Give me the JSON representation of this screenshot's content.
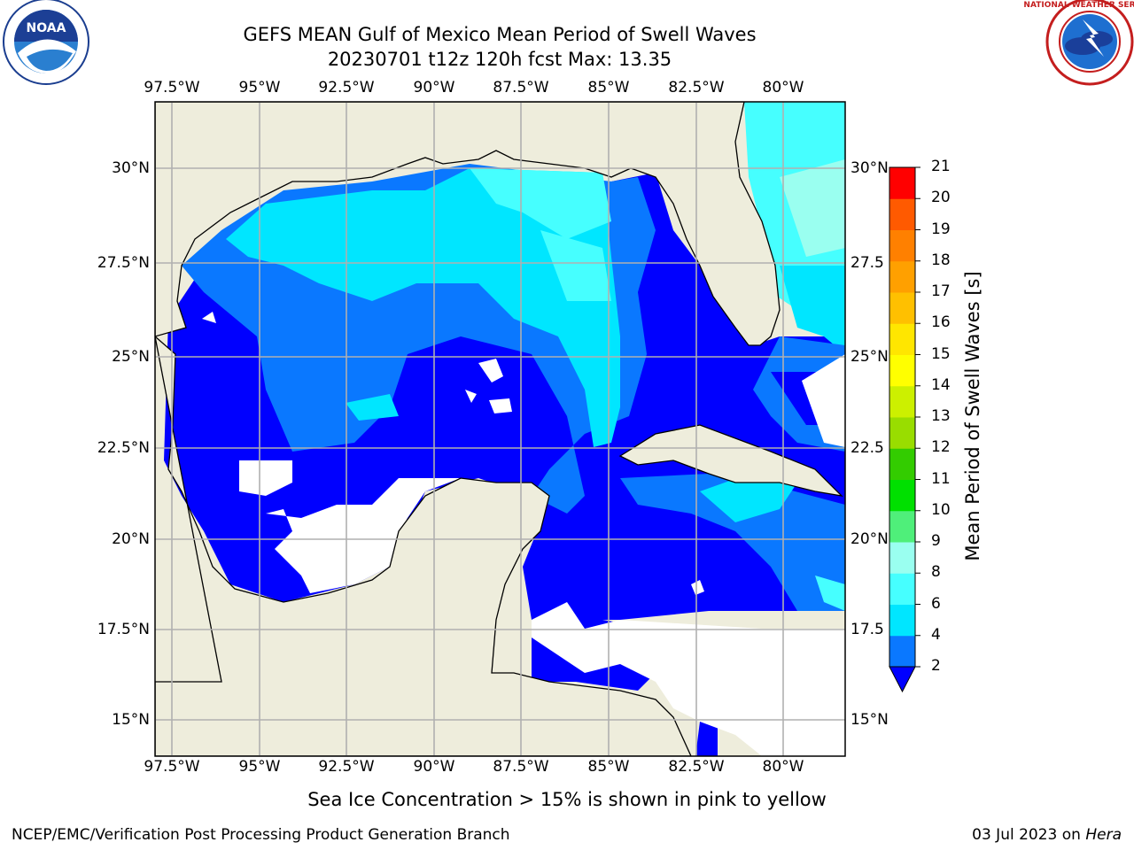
{
  "header": {
    "title_line1": "GEFS MEAN Gulf of Mexico Mean Period of Swell Waves",
    "title_line2": "20230701 t12z 120h fcst   Max: 13.35"
  },
  "logos": {
    "noaa": {
      "text": "NOAA",
      "ring_text": "NATIONAL OCEANIC AND ATMOSPHERIC ADMINISTRATION · U.S. DEPARTMENT OF COMMERCE"
    },
    "nws": {
      "ring_text": "NATIONAL WEATHER SERVICE"
    }
  },
  "map": {
    "lon_ticks": [
      "97.5°W",
      "95°W",
      "92.5°W",
      "90°W",
      "87.5°W",
      "85°W",
      "82.5°W",
      "80°W"
    ],
    "lat_ticks_left": [
      "30°N",
      "27.5°N",
      "25°N",
      "22.5°N",
      "20°N",
      "17.5°N",
      "15°N"
    ],
    "lat_ticks_right": [
      "30°N",
      "27.5",
      "25°N",
      "22.5",
      "20°N",
      "17.5",
      "15°N"
    ],
    "colors": {
      "land": "#eeeddc",
      "grid": "#b0b0b0",
      "coast": "#000000"
    },
    "range": {
      "lon": [
        -98,
        -78.3
      ],
      "lat": [
        14,
        31.5
      ]
    }
  },
  "colorbar": {
    "label": "Mean Period of Swell Waves [s]",
    "ticks": [
      "2",
      "4",
      "6",
      "8",
      "9",
      "10",
      "11",
      "12",
      "13",
      "14",
      "15",
      "16",
      "17",
      "18",
      "19",
      "20",
      "21"
    ],
    "colors": [
      "#0a78ff",
      "#00e6ff",
      "#46ffff",
      "#9afff0",
      "#4fef7a",
      "#00e000",
      "#33cc00",
      "#99dd00",
      "#ccf000",
      "#ffff00",
      "#ffe600",
      "#ffc000",
      "#ffa000",
      "#ff8000",
      "#ff5a00",
      "#ff2800",
      "#ff0000"
    ],
    "extend_color": "#0000ff"
  },
  "footer": {
    "note": "Sea Ice Concentration > 15% is shown in pink to yellow",
    "credit": "NCEP/EMC/Verification Post Processing Product Generation Branch",
    "date": "03 Jul 2023 on ",
    "machine": "Hera"
  }
}
